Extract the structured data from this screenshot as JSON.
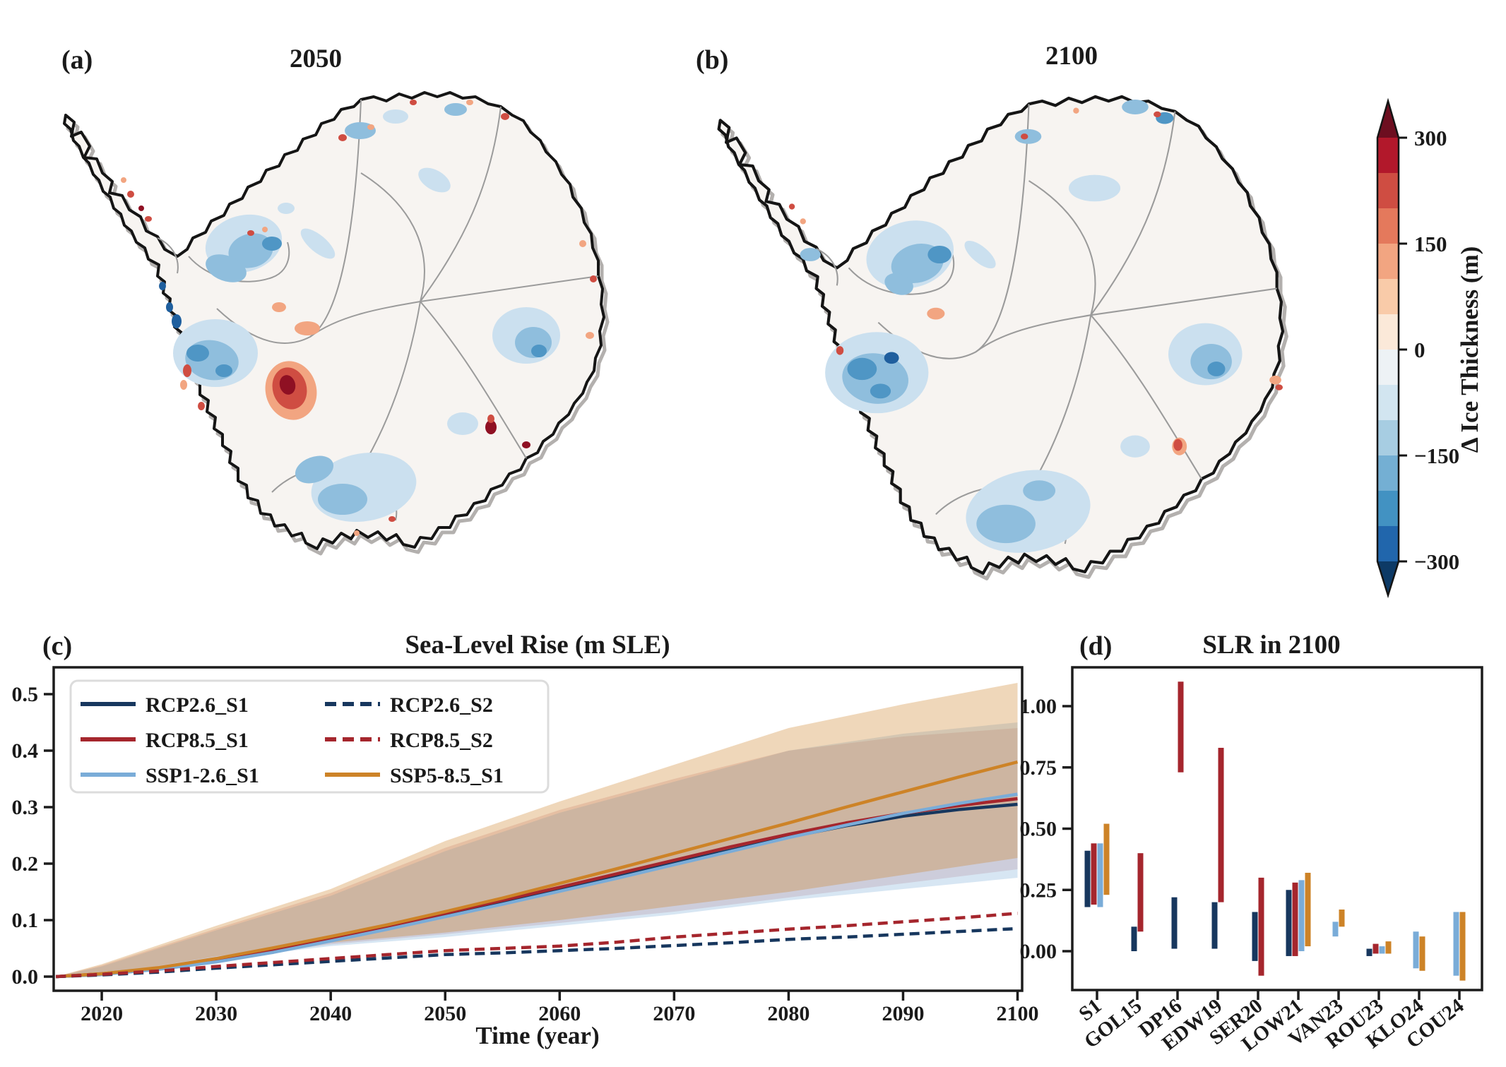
{
  "panels": {
    "a": {
      "label": "(a)",
      "title": "2050"
    },
    "b": {
      "label": "(b)",
      "title": "2100"
    },
    "c": {
      "label": "(c)",
      "title": "Sea-Level Rise (m SLE)",
      "xlabel": "Time (year)"
    },
    "d": {
      "label": "(d)",
      "title": "SLR in 2100"
    }
  },
  "colorbar": {
    "label": "Δ Ice Thickness (m)",
    "tick_labels": [
      "300",
      "150",
      "0",
      "−150",
      "−300"
    ],
    "range": [
      -300,
      300
    ],
    "band_colors_top_to_bottom": [
      "#b2182b",
      "#cf4d42",
      "#e4795c",
      "#f2a581",
      "#f9cba9",
      "#fbe9d9",
      "#edf2f5",
      "#d2e5f0",
      "#a7cde2",
      "#74afd3",
      "#4292c2",
      "#2166ac"
    ],
    "over_color": "#6d0e20",
    "under_color": "#0d3a66"
  },
  "palette": {
    "navy": "#17375e",
    "red": "#a5262d",
    "lightblue": "#7aacd8",
    "orange": "#cd8327",
    "band_orange": "rgba(205,131,39,0.32)",
    "band_blue": "rgba(122,172,216,0.30)",
    "band_red": "rgba(165,38,45,0.16)",
    "map_land": "#f7f4f1",
    "map_coast": "#151515",
    "map_gray": "#9b9b9b",
    "map_gray2": "#b3b0ae",
    "map_lightblue": "#cbe0ef",
    "map_midblue": "#8fbedd",
    "map_blue": "#4f96c5",
    "map_darkblue": "#1f5f9e",
    "map_salmon": "#f2a581",
    "map_red": "#cf4d42",
    "map_darkred": "#8f1023",
    "axis_color": "#1c1c1c"
  },
  "chart_data": [
    {
      "type": "line",
      "panel": "c",
      "title": "Sea-Level Rise (m SLE)",
      "xlabel": "Time (year)",
      "xlim": [
        2015.8,
        2100.4
      ],
      "ylim": [
        -0.025,
        0.548
      ],
      "xticks": [
        2020,
        2030,
        2040,
        2050,
        2060,
        2070,
        2080,
        2090,
        2100
      ],
      "ytick_labels": [
        "0.0",
        "0.1",
        "0.2",
        "0.3",
        "0.4",
        "0.5"
      ],
      "ytick_values": [
        0.0,
        0.1,
        0.2,
        0.3,
        0.4,
        0.5
      ],
      "legend_position": "upper left",
      "x": [
        2016,
        2020,
        2025,
        2030,
        2035,
        2040,
        2045,
        2050,
        2055,
        2060,
        2065,
        2070,
        2075,
        2080,
        2085,
        2090,
        2095,
        2100
      ],
      "series": [
        {
          "name": "RCP2.6_S1",
          "color": "navy",
          "style": "solid",
          "values": [
            0.0,
            0.004,
            0.014,
            0.028,
            0.046,
            0.066,
            0.087,
            0.11,
            0.132,
            0.155,
            0.178,
            0.201,
            0.224,
            0.247,
            0.267,
            0.284,
            0.296,
            0.305
          ]
        },
        {
          "name": "RCP8.5_S1",
          "color": "red",
          "style": "solid",
          "values": [
            0.0,
            0.005,
            0.015,
            0.03,
            0.048,
            0.068,
            0.089,
            0.112,
            0.135,
            0.158,
            0.182,
            0.206,
            0.23,
            0.252,
            0.272,
            0.289,
            0.303,
            0.315
          ]
        },
        {
          "name": "SSP1-2.6_S1",
          "color": "lightblue",
          "style": "solid",
          "values": [
            0.0,
            0.004,
            0.013,
            0.026,
            0.043,
            0.063,
            0.084,
            0.106,
            0.128,
            0.151,
            0.174,
            0.198,
            0.222,
            0.246,
            0.268,
            0.289,
            0.307,
            0.323
          ]
        },
        {
          "name": "SSP5-8.5_S1",
          "color": "orange",
          "style": "solid",
          "values": [
            0.0,
            0.005,
            0.016,
            0.032,
            0.051,
            0.071,
            0.092,
            0.115,
            0.139,
            0.165,
            0.191,
            0.218,
            0.245,
            0.272,
            0.3,
            0.327,
            0.354,
            0.38
          ]
        },
        {
          "name": "RCP2.6_S2",
          "color": "navy",
          "style": "dashed",
          "values": [
            0.0,
            0.003,
            0.008,
            0.015,
            0.021,
            0.027,
            0.033,
            0.039,
            0.042,
            0.046,
            0.05,
            0.055,
            0.06,
            0.066,
            0.07,
            0.075,
            0.08,
            0.085
          ]
        },
        {
          "name": "RCP8.5_S2",
          "color": "red",
          "style": "dashed",
          "values": [
            0.0,
            0.004,
            0.01,
            0.018,
            0.025,
            0.032,
            0.039,
            0.046,
            0.05,
            0.054,
            0.061,
            0.07,
            0.077,
            0.084,
            0.09,
            0.097,
            0.104,
            0.112
          ]
        }
      ],
      "bands": [
        {
          "name": "RCP8.5_S1_range",
          "color": "band_red",
          "x": [
            2016,
            2020,
            2030,
            2040,
            2050,
            2060,
            2070,
            2080,
            2090,
            2100
          ],
          "lower": [
            0,
            0.001,
            0.032,
            0.057,
            0.075,
            0.095,
            0.115,
            0.14,
            0.165,
            0.19
          ],
          "upper": [
            0,
            0.02,
            0.085,
            0.148,
            0.228,
            0.295,
            0.35,
            0.4,
            0.425,
            0.44
          ]
        },
        {
          "name": "SSP1-2.6_S1_range",
          "color": "band_blue",
          "x": [
            2016,
            2020,
            2030,
            2040,
            2050,
            2060,
            2070,
            2080,
            2090,
            2100
          ],
          "lower": [
            0,
            0.0,
            0.03,
            0.054,
            0.07,
            0.09,
            0.11,
            0.135,
            0.155,
            0.175
          ],
          "upper": [
            0,
            0.018,
            0.082,
            0.143,
            0.222,
            0.29,
            0.345,
            0.4,
            0.43,
            0.45
          ]
        },
        {
          "name": "SSP5-8.5_S1_range",
          "color": "band_orange",
          "x": [
            2016,
            2020,
            2030,
            2040,
            2050,
            2060,
            2070,
            2080,
            2090,
            2100
          ],
          "lower": [
            0,
            0.002,
            0.036,
            0.06,
            0.078,
            0.1,
            0.125,
            0.15,
            0.18,
            0.21
          ],
          "upper": [
            0,
            0.022,
            0.09,
            0.155,
            0.24,
            0.31,
            0.375,
            0.44,
            0.482,
            0.52
          ]
        }
      ],
      "legend": {
        "columns": [
          [
            "RCP2.6_S1",
            "RCP8.5_S1",
            "SSP1-2.6_S1"
          ],
          [
            "RCP2.6_S2",
            "RCP8.5_S2",
            "SSP5-8.5_S1"
          ]
        ]
      }
    },
    {
      "type": "range-bar",
      "panel": "d",
      "title": "SLR in 2100",
      "ytick_labels": [
        "0.00",
        "0.25",
        "0.50",
        "0.75",
        "1.00"
      ],
      "ytick_values": [
        0.0,
        0.25,
        0.5,
        0.75,
        1.0
      ],
      "categories": [
        "S1",
        "GOL15",
        "DP16",
        "EDW19",
        "SER20",
        "LOW21",
        "VAN23",
        "ROU23",
        "KLO24",
        "COU24"
      ],
      "groups": [
        {
          "cat": "S1",
          "bars": [
            {
              "color": "navy",
              "lo": 0.18,
              "hi": 0.41
            },
            {
              "color": "red",
              "lo": 0.19,
              "hi": 0.44
            },
            {
              "color": "lightblue",
              "lo": 0.18,
              "hi": 0.44
            },
            {
              "color": "orange",
              "lo": 0.23,
              "hi": 0.52
            }
          ]
        },
        {
          "cat": "GOL15",
          "bars": [
            {
              "color": "navy",
              "lo": 0.0,
              "hi": 0.1
            },
            {
              "color": "red",
              "lo": 0.08,
              "hi": 0.4
            }
          ]
        },
        {
          "cat": "DP16",
          "bars": [
            {
              "color": "navy",
              "lo": 0.01,
              "hi": 0.22
            },
            {
              "color": "red",
              "lo": 0.73,
              "hi": 1.1
            }
          ]
        },
        {
          "cat": "EDW19",
          "bars": [
            {
              "color": "navy",
              "lo": 0.01,
              "hi": 0.2
            },
            {
              "color": "red",
              "lo": 0.2,
              "hi": 0.83
            }
          ]
        },
        {
          "cat": "SER20",
          "bars": [
            {
              "color": "navy",
              "lo": -0.04,
              "hi": 0.16
            },
            {
              "color": "red",
              "lo": -0.1,
              "hi": 0.3
            }
          ]
        },
        {
          "cat": "LOW21",
          "bars": [
            {
              "color": "navy",
              "lo": -0.02,
              "hi": 0.25
            },
            {
              "color": "red",
              "lo": -0.02,
              "hi": 0.28
            },
            {
              "color": "lightblue",
              "lo": 0.0,
              "hi": 0.29
            },
            {
              "color": "orange",
              "lo": 0.02,
              "hi": 0.32
            }
          ]
        },
        {
          "cat": "VAN23",
          "bars": [
            {
              "color": "lightblue",
              "lo": 0.06,
              "hi": 0.12
            },
            {
              "color": "orange",
              "lo": 0.1,
              "hi": 0.17
            }
          ]
        },
        {
          "cat": "ROU23",
          "bars": [
            {
              "color": "navy",
              "lo": -0.02,
              "hi": 0.01
            },
            {
              "color": "red",
              "lo": -0.01,
              "hi": 0.03
            },
            {
              "color": "lightblue",
              "lo": -0.01,
              "hi": 0.02
            },
            {
              "color": "orange",
              "lo": -0.01,
              "hi": 0.04
            }
          ]
        },
        {
          "cat": "KLO24",
          "bars": [
            {
              "color": "lightblue",
              "lo": -0.07,
              "hi": 0.08
            },
            {
              "color": "orange",
              "lo": -0.08,
              "hi": 0.06
            }
          ]
        },
        {
          "cat": "COU24",
          "bars": [
            {
              "color": "lightblue",
              "lo": -0.1,
              "hi": 0.16
            },
            {
              "color": "orange",
              "lo": -0.12,
              "hi": 0.16
            }
          ]
        }
      ]
    },
    {
      "type": "map",
      "panels": [
        {
          "label": "(a)",
          "title": "2050",
          "variable": "Δ Ice Thickness (m)"
        },
        {
          "label": "(b)",
          "title": "2100",
          "variable": "Δ Ice Thickness (m)"
        }
      ]
    }
  ]
}
